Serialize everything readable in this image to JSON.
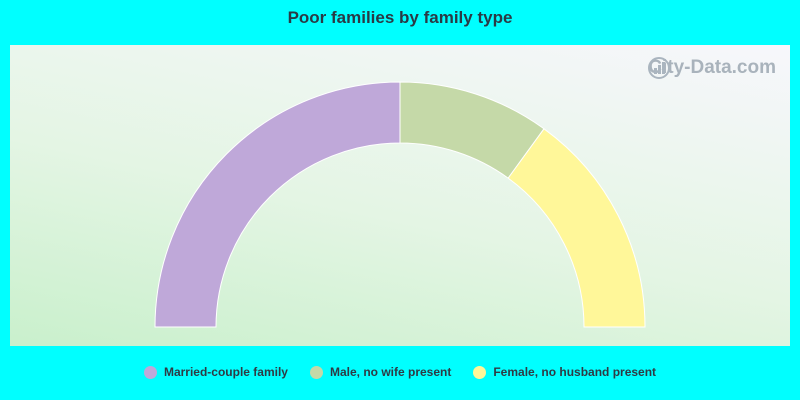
{
  "title": "Poor families by family type",
  "watermark": "City-Data.com",
  "chart_data": {
    "type": "pie",
    "subtype": "half-donut",
    "categories": [
      "Married-couple family",
      "Male, no wife present",
      "Female, no husband present"
    ],
    "values": [
      50,
      20,
      30
    ],
    "colors": [
      "#bfa8d9",
      "#c5d9a8",
      "#fff799"
    ],
    "legend_position": "bottom"
  }
}
